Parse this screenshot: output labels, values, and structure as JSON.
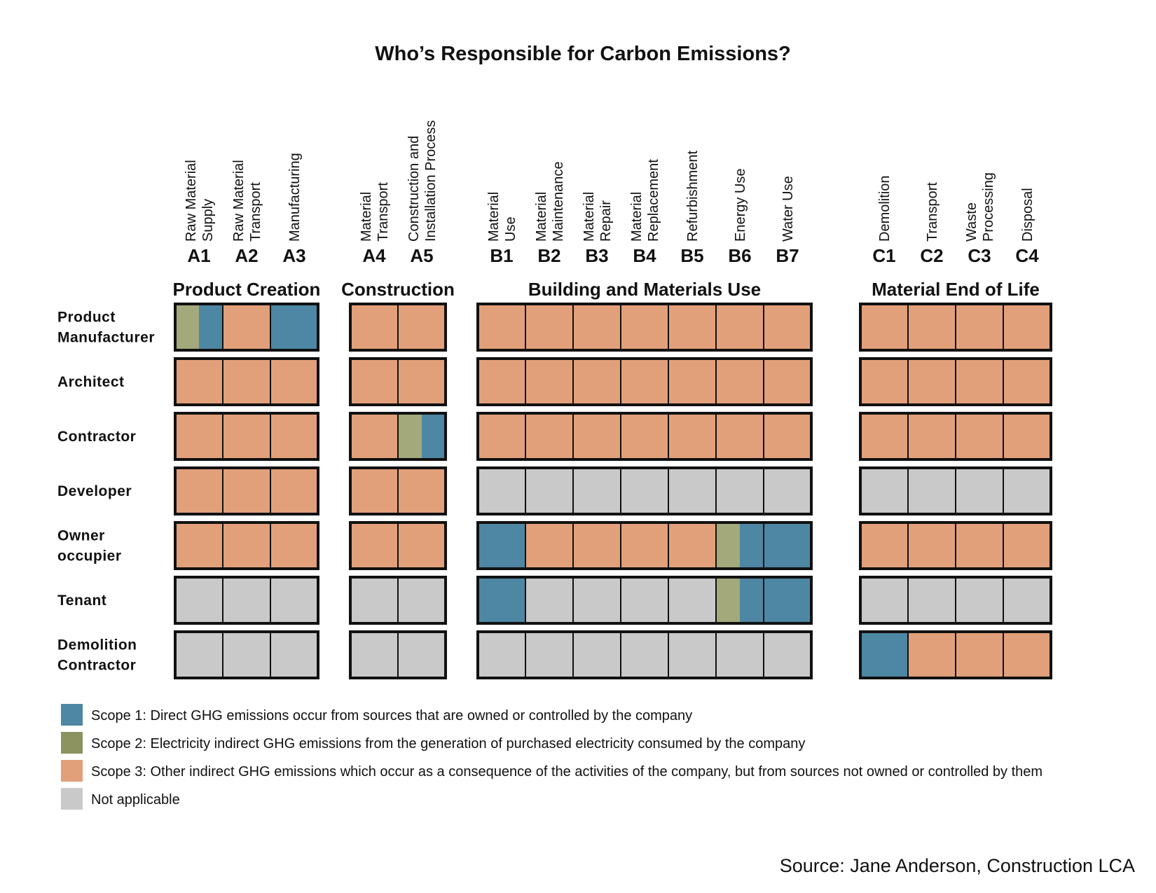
{
  "chart_data": {
    "type": "table",
    "title": "Who’s Responsible for Carbon Emissions?",
    "colors": {
      "scope1": "#4d87a3",
      "scope2": "#a3a97b",
      "scope2_legend": "#8c9260",
      "scope3": "#e2a07a",
      "na": "#c9c9c9",
      "border": "#111111"
    },
    "groups": [
      {
        "name": "Product Creation",
        "stages": [
          {
            "code": "A1",
            "label": [
              "Raw Material",
              "Supply"
            ]
          },
          {
            "code": "A2",
            "label": [
              "Raw Material",
              "Transport"
            ]
          },
          {
            "code": "A3",
            "label": [
              "Manufacturing"
            ]
          }
        ]
      },
      {
        "name": "Construction",
        "stages": [
          {
            "code": "A4",
            "label": [
              "Material",
              "Transport"
            ]
          },
          {
            "code": "A5",
            "label": [
              "Construction and",
              "Installation Process"
            ]
          }
        ]
      },
      {
        "name": "Building and Materials Use",
        "stages": [
          {
            "code": "B1",
            "label": [
              "Material",
              "Use"
            ]
          },
          {
            "code": "B2",
            "label": [
              "Material",
              "Maintenance"
            ]
          },
          {
            "code": "B3",
            "label": [
              "Material",
              "Repair"
            ]
          },
          {
            "code": "B4",
            "label": [
              "Material",
              "Replacement"
            ]
          },
          {
            "code": "B5",
            "label": [
              "Refurbishment"
            ]
          },
          {
            "code": "B6",
            "label": [
              "Energy Use"
            ]
          },
          {
            "code": "B7",
            "label": [
              "Water Use"
            ]
          }
        ]
      },
      {
        "name": "Material End of Life",
        "stages": [
          {
            "code": "C1",
            "label": [
              "Demolition"
            ]
          },
          {
            "code": "C2",
            "label": [
              "Transport"
            ]
          },
          {
            "code": "C3",
            "label": [
              "Waste",
              "Processing"
            ]
          },
          {
            "code": "C4",
            "label": [
              "Disposal"
            ]
          }
        ]
      }
    ],
    "rows": [
      {
        "name": [
          "Product",
          "Manufacturer"
        ],
        "cells": [
          [
            "scope2",
            "scope1"
          ],
          [
            "scope3"
          ],
          [
            "scope1"
          ],
          [
            "scope3"
          ],
          [
            "scope3"
          ],
          [
            "scope3"
          ],
          [
            "scope3"
          ],
          [
            "scope3"
          ],
          [
            "scope3"
          ],
          [
            "scope3"
          ],
          [
            "scope3"
          ],
          [
            "scope3"
          ],
          [
            "scope3"
          ],
          [
            "scope3"
          ],
          [
            "scope3"
          ],
          [
            "scope3"
          ]
        ]
      },
      {
        "name": [
          "Architect"
        ],
        "cells": [
          [
            "scope3"
          ],
          [
            "scope3"
          ],
          [
            "scope3"
          ],
          [
            "scope3"
          ],
          [
            "scope3"
          ],
          [
            "scope3"
          ],
          [
            "scope3"
          ],
          [
            "scope3"
          ],
          [
            "scope3"
          ],
          [
            "scope3"
          ],
          [
            "scope3"
          ],
          [
            "scope3"
          ],
          [
            "scope3"
          ],
          [
            "scope3"
          ],
          [
            "scope3"
          ],
          [
            "scope3"
          ]
        ]
      },
      {
        "name": [
          "Contractor"
        ],
        "cells": [
          [
            "scope3"
          ],
          [
            "scope3"
          ],
          [
            "scope3"
          ],
          [
            "scope3"
          ],
          [
            "scope2",
            "scope1"
          ],
          [
            "scope3"
          ],
          [
            "scope3"
          ],
          [
            "scope3"
          ],
          [
            "scope3"
          ],
          [
            "scope3"
          ],
          [
            "scope3"
          ],
          [
            "scope3"
          ],
          [
            "scope3"
          ],
          [
            "scope3"
          ],
          [
            "scope3"
          ],
          [
            "scope3"
          ]
        ]
      },
      {
        "name": [
          "Developer"
        ],
        "cells": [
          [
            "scope3"
          ],
          [
            "scope3"
          ],
          [
            "scope3"
          ],
          [
            "scope3"
          ],
          [
            "scope3"
          ],
          [
            "na"
          ],
          [
            "na"
          ],
          [
            "na"
          ],
          [
            "na"
          ],
          [
            "na"
          ],
          [
            "na"
          ],
          [
            "na"
          ],
          [
            "na"
          ],
          [
            "na"
          ],
          [
            "na"
          ],
          [
            "na"
          ]
        ]
      },
      {
        "name": [
          "Owner",
          "occupier"
        ],
        "cells": [
          [
            "scope3"
          ],
          [
            "scope3"
          ],
          [
            "scope3"
          ],
          [
            "scope3"
          ],
          [
            "scope3"
          ],
          [
            "scope1"
          ],
          [
            "scope3"
          ],
          [
            "scope3"
          ],
          [
            "scope3"
          ],
          [
            "scope3"
          ],
          [
            "scope2",
            "scope1"
          ],
          [
            "scope1"
          ],
          [
            "scope3"
          ],
          [
            "scope3"
          ],
          [
            "scope3"
          ],
          [
            "scope3"
          ]
        ]
      },
      {
        "name": [
          "Tenant"
        ],
        "cells": [
          [
            "na"
          ],
          [
            "na"
          ],
          [
            "na"
          ],
          [
            "na"
          ],
          [
            "na"
          ],
          [
            "scope1"
          ],
          [
            "na"
          ],
          [
            "na"
          ],
          [
            "na"
          ],
          [
            "na"
          ],
          [
            "scope2",
            "scope1"
          ],
          [
            "scope1"
          ],
          [
            "na"
          ],
          [
            "na"
          ],
          [
            "na"
          ],
          [
            "na"
          ]
        ]
      },
      {
        "name": [
          "Demolition",
          "Contractor"
        ],
        "cells": [
          [
            "na"
          ],
          [
            "na"
          ],
          [
            "na"
          ],
          [
            "na"
          ],
          [
            "na"
          ],
          [
            "na"
          ],
          [
            "na"
          ],
          [
            "na"
          ],
          [
            "na"
          ],
          [
            "na"
          ],
          [
            "na"
          ],
          [
            "na"
          ],
          [
            "scope1"
          ],
          [
            "scope3"
          ],
          [
            "scope3"
          ],
          [
            "scope3"
          ]
        ]
      }
    ],
    "legend": [
      {
        "key": "scope1",
        "color_key": "scope1",
        "label": "Scope 1: Direct GHG emissions occur from sources that are owned or controlled by the company"
      },
      {
        "key": "scope2",
        "color_key": "scope2_legend",
        "label": "Scope 2: Electricity indirect GHG emissions from the generation of purchased electricity consumed by the company"
      },
      {
        "key": "scope3",
        "color_key": "scope3",
        "label": "Scope 3: Other indirect GHG emissions which occur as a consequence of the activities of the company, but from sources not owned or controlled by them"
      },
      {
        "key": "na",
        "color_key": "na",
        "label": "Not applicable"
      }
    ],
    "source": "Source: Jane Anderson, Construction LCA"
  }
}
